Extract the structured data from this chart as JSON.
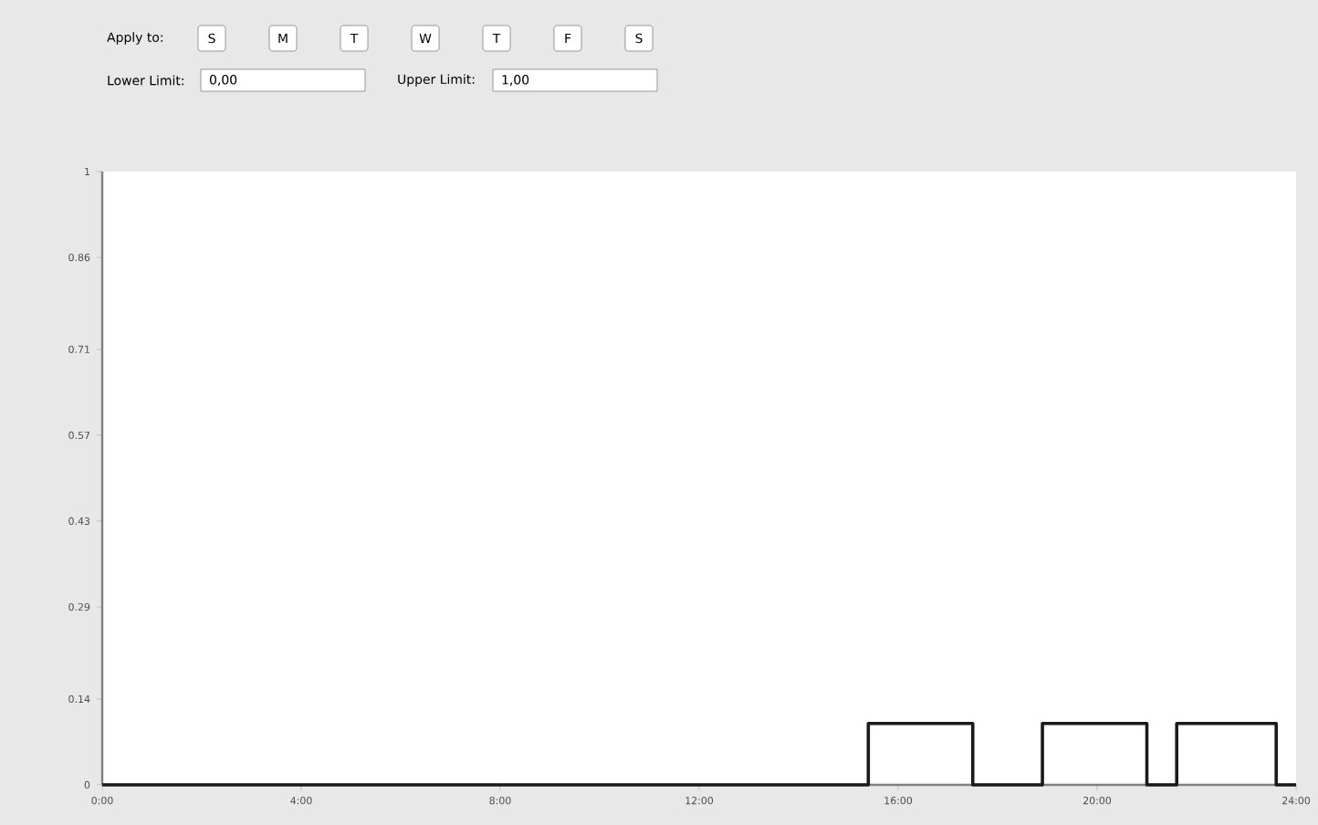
{
  "chart_data": {
    "type": "step",
    "annotations": [
      "Apply to:",
      "S",
      "M",
      "T",
      "W",
      "T",
      "F",
      "S",
      "Lower Limit:",
      "0,00",
      "Upper Limit:",
      "1,00"
    ],
    "x": [
      0,
      15.4,
      17.5,
      18.9,
      21.0,
      21.6,
      23.6,
      24
    ],
    "series": [
      {
        "color": "#1a1a1a",
        "values": [
          0,
          0.1,
          0,
          0.1,
          0,
          0.1,
          0,
          0
        ]
      }
    ],
    "xlim": [
      0,
      24
    ],
    "ylim": [
      0,
      1
    ],
    "xticks": [
      {
        "value": 0,
        "label": "0:00"
      },
      {
        "value": 4,
        "label": "4:00"
      },
      {
        "value": 8,
        "label": "8:00"
      },
      {
        "value": 12,
        "label": "12:00"
      },
      {
        "value": 16,
        "label": "16:00"
      },
      {
        "value": 20,
        "label": "20:00"
      },
      {
        "value": 24,
        "label": "24:00"
      }
    ],
    "yticks": [
      0,
      0.14,
      0.29,
      0.43,
      0.57,
      0.71,
      0.86,
      1
    ],
    "marker": "none",
    "line_style": "solid"
  }
}
